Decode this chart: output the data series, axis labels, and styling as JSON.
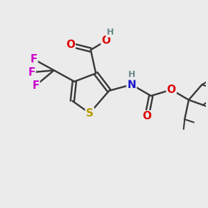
{
  "bg_color": "#ebebeb",
  "bond_color": "#3a3a3a",
  "bond_width": 1.8,
  "colors": {
    "C": "#3a3a3a",
    "H": "#6a8a8a",
    "O": "#dd0000",
    "N": "#1818cc",
    "S": "#b89800",
    "F": "#cc00cc"
  },
  "figsize": [
    3.0,
    3.0
  ],
  "dpi": 100
}
